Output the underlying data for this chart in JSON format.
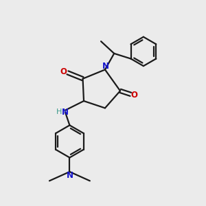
{
  "bg_color": "#ebebeb",
  "bond_color": "#1a1a1a",
  "nitrogen_color": "#1414cc",
  "oxygen_color": "#cc0000",
  "h_color": "#3a9a8a",
  "line_width": 1.6,
  "font_size_atom": 8.5,
  "fig_size": [
    3.0,
    3.0
  ],
  "dpi": 100,
  "xlim": [
    0,
    10
  ],
  "ylim": [
    0,
    10
  ]
}
